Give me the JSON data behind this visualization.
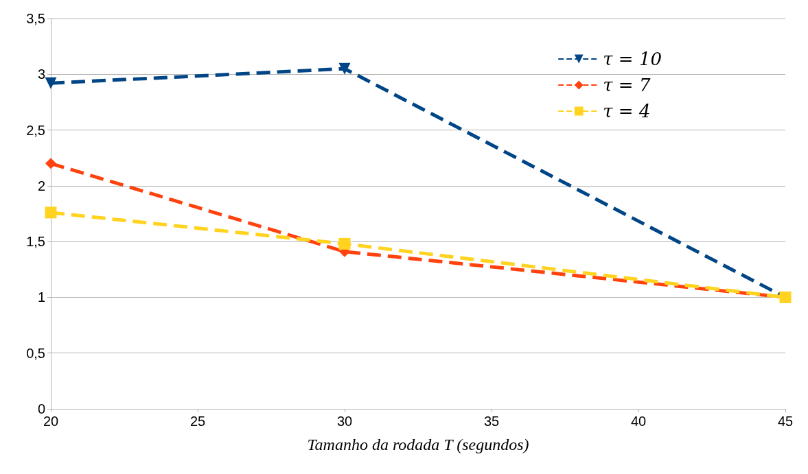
{
  "chart_data": {
    "type": "line",
    "xlabel": "Tamanho da rodada T (segundos)",
    "x": [
      20,
      30,
      45
    ],
    "series": [
      {
        "name": "τ = 10",
        "color": "#004586",
        "values": [
          2.92,
          3.05,
          1.0
        ],
        "marker": "triangle"
      },
      {
        "name": "τ = 7",
        "color": "#ff420e",
        "values": [
          2.2,
          1.41,
          1.0
        ],
        "marker": "diamond"
      },
      {
        "name": "τ = 4",
        "color": "#ffd320",
        "values": [
          1.76,
          1.48,
          1.0
        ],
        "marker": "square"
      }
    ],
    "xlim": [
      20,
      45
    ],
    "xticks": [
      20,
      25,
      30,
      35,
      40,
      45
    ],
    "ylim": [
      0,
      3.5
    ],
    "yticks": [
      0,
      {
        "value": 0.5,
        "label": "0,5"
      },
      1,
      {
        "value": 1.5,
        "label": "1,5"
      },
      2,
      {
        "value": 2.5,
        "label": "2,5"
      },
      3,
      {
        "value": 3.5,
        "label": "3,5"
      }
    ],
    "grid": "y",
    "legend": "top right",
    "line_style": "dashed"
  }
}
